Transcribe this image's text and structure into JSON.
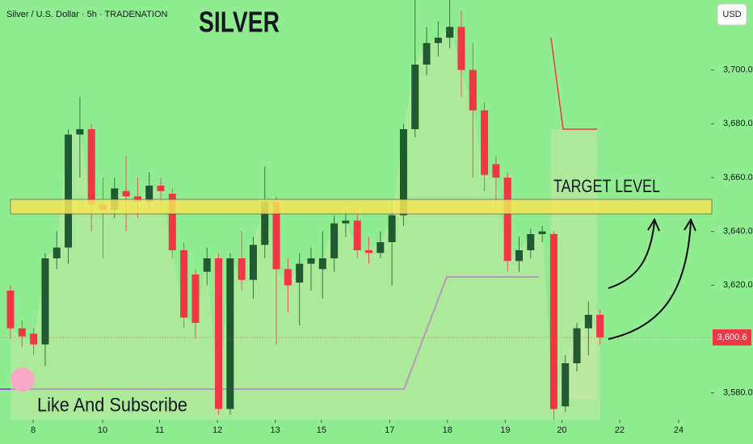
{
  "chart_data": {
    "type": "candlestick",
    "title": "SILVER",
    "subtitle": "Silver / U.S. Dollar · 5h · TRADENATION",
    "annotations": {
      "target": "TARGET LEVEL",
      "promo": "Like And Subscribe",
      "currency": "USD"
    },
    "last_price_label": "3,600.6",
    "x": [
      0,
      1,
      2,
      3,
      4,
      5,
      6,
      7,
      8,
      9,
      10,
      11,
      12,
      13,
      14,
      15,
      16,
      17,
      18,
      19,
      20,
      21,
      22,
      23,
      24,
      25,
      26,
      27,
      28,
      29,
      30,
      31,
      32,
      33,
      34,
      35,
      36,
      37,
      38,
      39,
      40,
      41,
      42,
      43,
      44,
      45,
      46,
      47,
      48,
      49,
      50,
      51
    ],
    "open": [
      3618,
      3604,
      3602,
      3598,
      3630,
      3634,
      3676,
      3678,
      3650,
      3648,
      3655,
      3653,
      3651,
      3657,
      3654,
      3633,
      3624,
      3625,
      3630,
      3574,
      3630,
      3622,
      3635,
      3651,
      3626,
      3621,
      3628,
      3626,
      3630,
      3643,
      3644,
      3633,
      3632,
      3636,
      3646,
      3678,
      3702,
      3710,
      3712,
      3716,
      3700,
      3685,
      3665,
      3660,
      3629,
      3633,
      3639,
      3639,
      3575,
      3591,
      3604,
      3609
    ],
    "high": [
      3620,
      3607,
      3604,
      3632,
      3640,
      3678,
      3690,
      3680,
      3660,
      3660,
      3668,
      3660,
      3662,
      3660,
      3656,
      3636,
      3626,
      3634,
      3632,
      3632,
      3640,
      3638,
      3664,
      3653,
      3630,
      3632,
      3634,
      3640,
      3646,
      3648,
      3650,
      3638,
      3640,
      3650,
      3680,
      3726,
      3716,
      3718,
      3726,
      3722,
      3710,
      3688,
      3668,
      3662,
      3638,
      3641,
      3642,
      3640,
      3594,
      3606,
      3614,
      3611
    ],
    "low": [
      3600,
      3597,
      3594,
      3590,
      3626,
      3628,
      3660,
      3640,
      3630,
      3645,
      3640,
      3645,
      3648,
      3650,
      3630,
      3604,
      3600,
      3620,
      3572,
      3572,
      3618,
      3615,
      3630,
      3598,
      3610,
      3605,
      3618,
      3615,
      3625,
      3638,
      3630,
      3628,
      3630,
      3620,
      3642,
      3675,
      3698,
      3705,
      3708,
      3690,
      3660,
      3655,
      3650,
      3625,
      3625,
      3630,
      3636,
      3570,
      3573,
      3588,
      3594,
      3598
    ],
    "close": [
      3604,
      3601,
      3598,
      3630,
      3634,
      3676,
      3678,
      3650,
      3648,
      3656,
      3653,
      3651,
      3657,
      3655,
      3633,
      3608,
      3606,
      3630,
      3574,
      3630,
      3622,
      3635,
      3651,
      3626,
      3620,
      3628,
      3630,
      3630,
      3643,
      3644,
      3633,
      3632,
      3636,
      3646,
      3678,
      3702,
      3710,
      3712,
      3716,
      3700,
      3685,
      3661,
      3660,
      3629,
      3633,
      3639,
      3640,
      3574,
      3591,
      3604,
      3609,
      3600.6
    ],
    "up_color": "#1f5a33",
    "down_color": "#f23645",
    "xlim": [
      -0.91,
      60.6
    ],
    "xticks": [
      {
        "value": 1.96,
        "label": "8"
      },
      {
        "value": 7.97,
        "label": "10"
      },
      {
        "value": 12.9,
        "label": "11"
      },
      {
        "value": 17.9,
        "label": "12"
      },
      {
        "value": 22.9,
        "label": "13"
      },
      {
        "value": 26.9,
        "label": "15"
      },
      {
        "value": 32.8,
        "label": "17"
      },
      {
        "value": 37.8,
        "label": "18"
      },
      {
        "value": 42.8,
        "label": "19"
      },
      {
        "value": 47.7,
        "label": "20"
      },
      {
        "value": 52.7,
        "label": "22"
      },
      {
        "value": 57.8,
        "label": "24"
      }
    ],
    "ylim": [
      3570,
      3726
    ],
    "yticks": [
      {
        "value": 3580,
        "label": "3,580.0"
      },
      {
        "value": 3620,
        "label": "3,620.0"
      },
      {
        "value": 3640,
        "label": "3,640.0"
      },
      {
        "value": 3660,
        "label": "3,660.0"
      },
      {
        "value": 3680,
        "label": "3,680.0"
      },
      {
        "value": 3700,
        "label": "3,700.0"
      }
    ]
  }
}
